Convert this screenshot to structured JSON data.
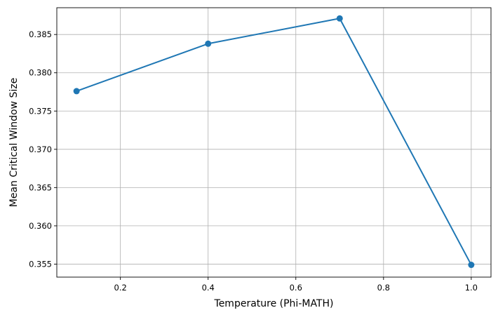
{
  "chart_data": {
    "type": "line",
    "title": "",
    "xlabel": "Temperature (Phi-MATH)",
    "ylabel": "Mean Critical Window Size",
    "xlim": [
      0.055,
      1.045
    ],
    "ylim": [
      0.3533,
      0.3885
    ],
    "xticks": [
      0.2,
      0.4,
      0.6,
      0.8,
      1.0
    ],
    "xtick_labels": [
      "0.2",
      "0.4",
      "0.6",
      "0.8",
      "1.0"
    ],
    "yticks": [
      0.355,
      0.36,
      0.365,
      0.37,
      0.375,
      0.38,
      0.385
    ],
    "ytick_labels": [
      "0.355",
      "0.360",
      "0.365",
      "0.370",
      "0.375",
      "0.380",
      "0.385"
    ],
    "grid": true,
    "legend": "none",
    "series": [
      {
        "x": [
          0.1,
          0.4,
          0.7,
          1.0
        ],
        "values": [
          0.3776,
          0.3838,
          0.3871,
          0.3549
        ],
        "color": "#1f77b4",
        "marker": "circle"
      }
    ]
  }
}
